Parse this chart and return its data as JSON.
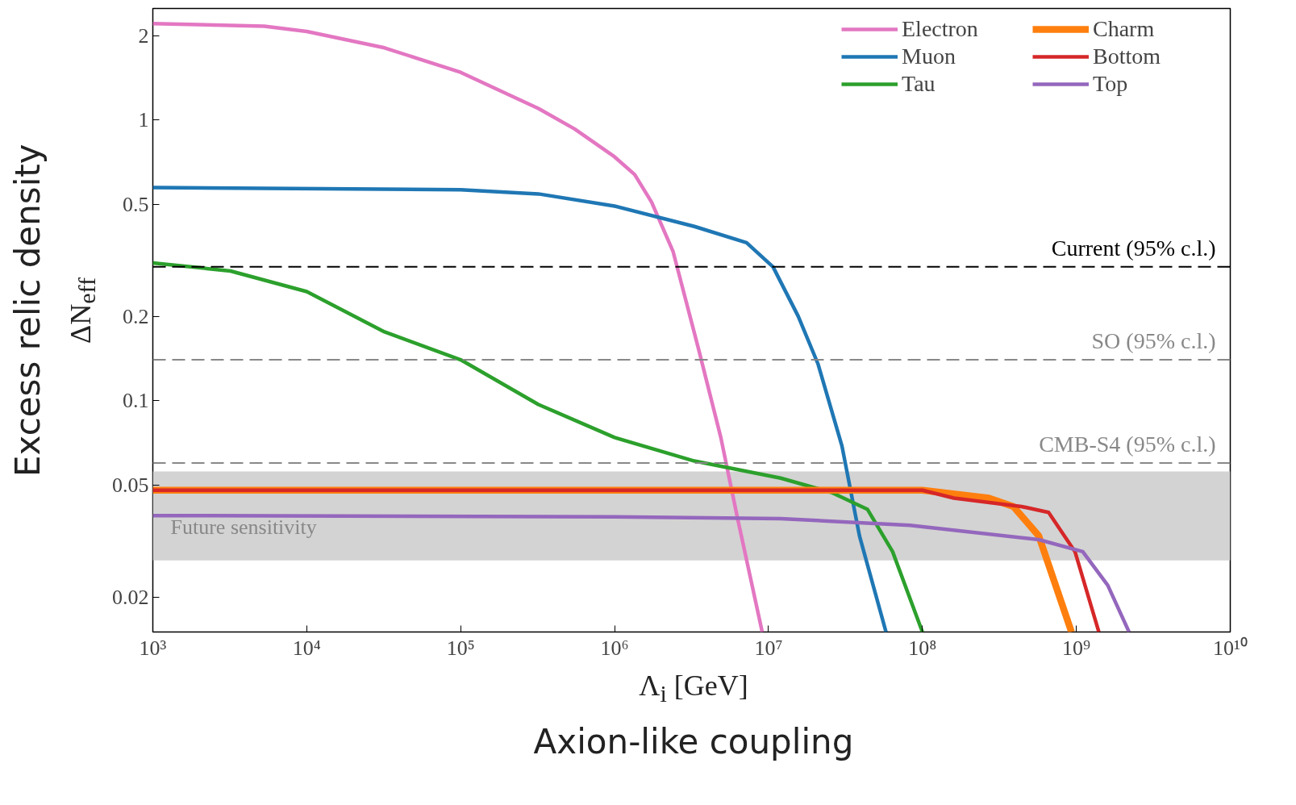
{
  "chart_data": {
    "type": "line",
    "xlabel": "Λ$_{i}$ [GeV]",
    "ylabel": "ΔN$_{eff}$",
    "log": "xy",
    "grid": false,
    "legend": "top right",
    "annotations": [
      "Excess relic density",
      "Axion-like coupling"
    ],
    "xlim": [
      1000,
      10000000000
    ],
    "ylim": [
      0.015,
      2.5
    ],
    "xticks": [
      {
        "value": 1000,
        "label": "10³"
      },
      {
        "value": 10000,
        "label": "10⁴"
      },
      {
        "value": 100000,
        "label": "10⁵"
      },
      {
        "value": 1000000,
        "label": "10⁶"
      },
      {
        "value": 10000000,
        "label": "10⁷"
      },
      {
        "value": 100000000,
        "label": "10⁸"
      },
      {
        "value": 1000000000,
        "label": "10⁹"
      },
      {
        "value": 10000000000,
        "label": "10¹⁰"
      }
    ],
    "yticks": [
      0.02,
      0.05,
      0.1,
      0.2,
      0.5,
      1,
      2
    ],
    "ref_lines": [
      {
        "axis": "y",
        "value": 0.3,
        "label": "Current (95% c.l.)",
        "color": "#000000",
        "line_style": "dashed"
      },
      {
        "axis": "y",
        "value": 0.14,
        "label": "SO (95% c.l.)",
        "color": "#888888",
        "line_style": "dashed"
      },
      {
        "axis": "y",
        "value": 0.06,
        "label": "CMB-S4 (95% c.l.)",
        "color": "#888888",
        "line_style": "dashed"
      }
    ],
    "bands": [
      {
        "axis": "y",
        "from": 0.027,
        "to": 0.056,
        "label": "Future sensitivity",
        "color": "#d3d3d3"
      }
    ],
    "series": [
      {
        "name": "Electron",
        "color": "#e377c2",
        "x": [
          1000,
          5300,
          10000,
          32000,
          100000,
          320000,
          550000,
          1000000,
          1350000,
          1740000,
          2400000,
          3500000,
          4900000,
          6300000,
          9100000
        ],
        "values": [
          2.21,
          2.16,
          2.07,
          1.81,
          1.48,
          1.1,
          0.93,
          0.74,
          0.64,
          0.51,
          0.34,
          0.154,
          0.074,
          0.038,
          0.015
        ]
      },
      {
        "name": "Muon",
        "color": "#1f77b4",
        "x": [
          1000,
          100000,
          320000,
          1000000,
          3300000,
          7200000,
          10700000,
          15600000,
          21000000,
          30000000,
          39000000,
          58000000
        ],
        "values": [
          0.575,
          0.565,
          0.546,
          0.494,
          0.418,
          0.366,
          0.3,
          0.2,
          0.135,
          0.069,
          0.033,
          0.015
        ]
      },
      {
        "name": "Tau",
        "color": "#2ca02c",
        "x": [
          1000,
          3200,
          10000,
          32000,
          100000,
          320000,
          1000000,
          3300000,
          12000000,
          26000000,
          44000000,
          64000000,
          100000000
        ],
        "values": [
          0.31,
          0.29,
          0.245,
          0.176,
          0.14,
          0.097,
          0.074,
          0.061,
          0.053,
          0.047,
          0.041,
          0.029,
          0.015
        ]
      },
      {
        "name": "Charm",
        "color": "#ff7f0e",
        "x": [
          1000,
          1000000,
          100000000,
          270000000,
          390000000,
          570000000,
          930000000
        ],
        "values": [
          0.048,
          0.048,
          0.048,
          0.045,
          0.042,
          0.033,
          0.015
        ]
      },
      {
        "name": "Bottom",
        "color": "#d62728",
        "x": [
          1000,
          1000000,
          100000000,
          160000000,
          440000000,
          660000000,
          980000000,
          1400000000
        ],
        "values": [
          0.048,
          0.048,
          0.048,
          0.045,
          0.042,
          0.04,
          0.029,
          0.015
        ]
      },
      {
        "name": "Top",
        "color": "#9467bd",
        "x": [
          1000,
          1000000,
          12000000,
          83000000,
          570000000,
          1100000000,
          1600000000,
          2200000000
        ],
        "values": [
          0.039,
          0.0386,
          0.038,
          0.036,
          0.032,
          0.029,
          0.022,
          0.015
        ]
      }
    ]
  }
}
